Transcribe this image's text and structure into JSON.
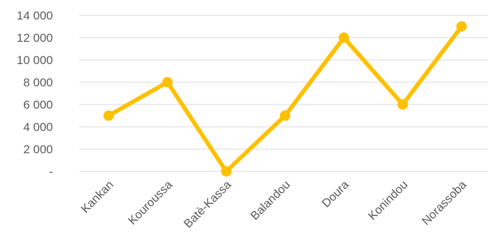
{
  "chart_data": {
    "type": "line",
    "categories": [
      "Kankan",
      "Kouroussa",
      "Batè-Kassa",
      "Balandou",
      "Doura",
      "Konindou",
      "Norassoba"
    ],
    "series": [
      {
        "values": [
          5000,
          8000,
          0,
          5000,
          12000,
          6000,
          13000
        ]
      }
    ],
    "ylim": [
      0,
      14000
    ],
    "yticks": [
      0,
      2000,
      4000,
      6000,
      8000,
      10000,
      12000,
      14000
    ],
    "ytick_labels": [
      "-",
      "2 000",
      "4 000",
      "6 000",
      "8 000",
      "10 000",
      "12 000",
      "14 000"
    ],
    "grid": true,
    "legend": "none",
    "colors": {
      "series": "#FFC000",
      "grid": "#d9d9d9",
      "text": "#595959"
    }
  }
}
